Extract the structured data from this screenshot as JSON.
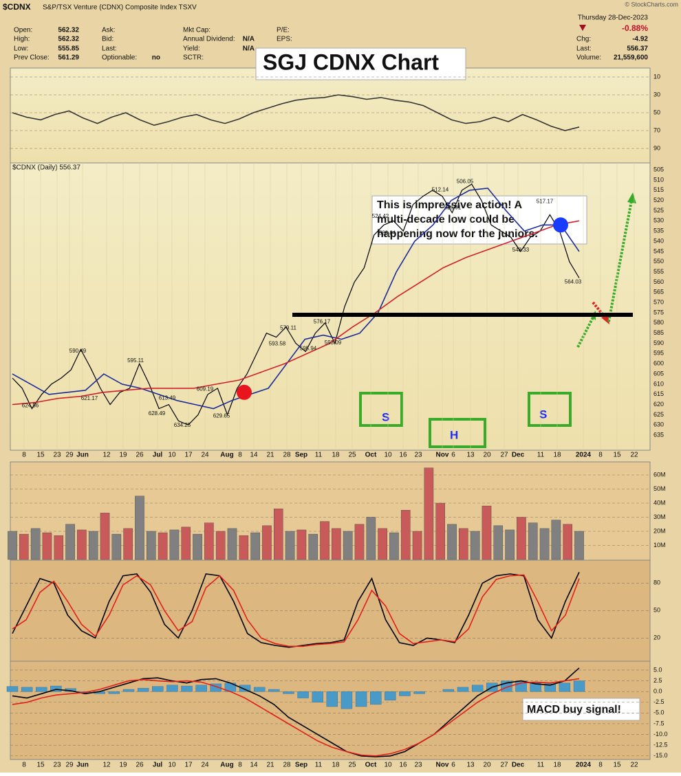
{
  "header": {
    "symbol": "$CDNX",
    "name": "S&P/TSX Venture (CDNX) Composite Index TSXV",
    "date": "Thursday  28-Dec-2023",
    "change_pct": "-0.88%",
    "source": "© StockCharts.com",
    "legend": "$CDNX (Daily) 556.37",
    "fields": [
      {
        "label": "Open:",
        "value": "562.32"
      },
      {
        "label": "High:",
        "value": "562.32"
      },
      {
        "label": "Low:",
        "value": "555.85"
      },
      {
        "label": "Prev Close:",
        "value": "561.29"
      },
      {
        "label": "Ask:"
      },
      {
        "label": "Bid:"
      },
      {
        "label": "Last:"
      },
      {
        "label": "Optionable:",
        "value": "no"
      },
      {
        "label": "Mkt Cap:"
      },
      {
        "label": "Annual Dividend:",
        "value": "N/A"
      },
      {
        "label": "Yield:",
        "value": "N/A"
      },
      {
        "label": "SCTR:"
      },
      {
        "label": "P/E:"
      },
      {
        "label": "EPS:"
      },
      {
        "label": "Chg:",
        "value": "-4.92"
      },
      {
        "label": "Last:",
        "value": "556.37"
      },
      {
        "label": "Volume:",
        "value": "21,559,600"
      }
    ]
  },
  "annotations": {
    "title": "SGJ CDNX Chart",
    "comment": [
      "This is impressive action!  A",
      "multi-decade low could be",
      "happening now for the juniors."
    ],
    "macd_note": "MACD buy signal!",
    "pattern": [
      "S",
      "H",
      "S"
    ]
  },
  "x_axis": {
    "labels": [
      8,
      15,
      23,
      29,
      "Jun",
      12,
      19,
      26,
      "Jul",
      10,
      17,
      24,
      "Aug",
      8,
      14,
      21,
      28,
      "Sep",
      11,
      18,
      25,
      "Oct",
      10,
      16,
      23,
      "Nov",
      6,
      13,
      20,
      27,
      "Dec",
      11,
      18,
      "2024",
      8,
      15,
      22
    ]
  },
  "chart_data": [
    {
      "type": "line",
      "name": "rsi",
      "ylim": [
        0,
        100
      ],
      "yticks": [
        10,
        30,
        50,
        70,
        90
      ],
      "grid": true,
      "series": [
        {
          "name": "RSI",
          "color": "#333333",
          "values": [
            50,
            55,
            58,
            52,
            48,
            56,
            62,
            55,
            50,
            58,
            64,
            60,
            55,
            52,
            58,
            62,
            57,
            50,
            45,
            40,
            36,
            34,
            33,
            30,
            32,
            35,
            33,
            36,
            38,
            42,
            50,
            58,
            62,
            60,
            55,
            60,
            52,
            58,
            65,
            70,
            66
          ]
        }
      ]
    },
    {
      "type": "line",
      "name": "price",
      "ylim": [
        502,
        640
      ],
      "yticks": [
        505,
        510,
        515,
        520,
        525,
        530,
        535,
        540,
        545,
        550,
        555,
        560,
        565,
        570,
        575,
        580,
        585,
        590,
        595,
        600,
        605,
        610,
        615,
        620,
        625,
        630,
        635
      ],
      "grid": false,
      "series": [
        {
          "name": "$CDNX",
          "color": "#000000",
          "values": [
            607,
            612,
            622,
            615,
            610,
            607,
            603,
            593,
            602,
            612,
            620,
            614,
            612,
            600,
            610,
            622,
            620,
            628,
            630,
            625,
            615,
            612,
            625,
            612,
            605,
            595,
            585,
            587,
            582,
            590,
            594,
            585,
            580,
            590,
            572,
            560,
            553,
            537,
            532,
            530,
            535,
            522,
            518,
            515,
            518,
            526,
            515,
            512,
            520,
            532,
            535,
            538,
            545,
            538,
            535,
            527,
            535,
            550,
            558
          ]
        },
        {
          "name": "MA20",
          "color": "#1a2a9a",
          "values": [
            605,
            610,
            615,
            614,
            613,
            605,
            610,
            612,
            615,
            618,
            620,
            622,
            618,
            615,
            612,
            600,
            588,
            586,
            588,
            585,
            575,
            555,
            540,
            532,
            520,
            515,
            514,
            525,
            535,
            532,
            532,
            545
          ]
        },
        {
          "name": "MA50",
          "color": "#d0202a",
          "values": [
            620,
            619,
            617,
            616,
            614,
            613,
            612,
            612,
            612,
            610,
            608,
            604,
            600,
            595,
            590,
            582,
            575,
            567,
            560,
            553,
            548,
            544,
            540,
            536,
            532,
            530
          ]
        }
      ],
      "level": 576,
      "markers": [
        {
          "value": 614,
          "color": "#e8141e"
        },
        {
          "value": 532,
          "color": "#1a3cff"
        }
      ],
      "price_labels": [
        624.56,
        621.17,
        628.49,
        634.25,
        629.65,
        590.49,
        595.11,
        613.49,
        609.19,
        593.58,
        595.94,
        593.09,
        579.11,
        576.17,
        538.84,
        524.42,
        526.91,
        512.14,
        506.05,
        548.33,
        564.03,
        517.17
      ]
    },
    {
      "type": "bar",
      "name": "volume",
      "ylim": [
        0,
        70
      ],
      "yticks": [
        {
          "value": 10,
          "label": "10M"
        },
        {
          "value": 20,
          "label": "20M"
        },
        {
          "value": 30,
          "label": "30M"
        },
        {
          "value": 40,
          "label": "40M"
        },
        {
          "value": 50,
          "label": "50M"
        },
        {
          "value": 60,
          "label": "60M"
        }
      ],
      "grid": true,
      "values": [
        20,
        18,
        22,
        19,
        17,
        25,
        21,
        20,
        33,
        18,
        22,
        45,
        20,
        19,
        21,
        23,
        18,
        26,
        20,
        22,
        17,
        19,
        24,
        36,
        20,
        21,
        18,
        27,
        22,
        20,
        25,
        30,
        22,
        19,
        35,
        20,
        65,
        40,
        25,
        22,
        20,
        38,
        24,
        21,
        30,
        26,
        22,
        28,
        25,
        20
      ],
      "colors": [
        "#808080",
        "#c85a5a",
        "#808080",
        "#c85a5a",
        "#c85a5a",
        "#808080",
        "#c85a5a",
        "#808080",
        "#c85a5a",
        "#808080",
        "#c85a5a",
        "#808080",
        "#808080",
        "#c85a5a",
        "#808080",
        "#c85a5a",
        "#808080",
        "#c85a5a",
        "#c85a5a",
        "#808080",
        "#c85a5a",
        "#808080",
        "#c85a5a",
        "#c85a5a",
        "#808080",
        "#c85a5a",
        "#808080",
        "#c85a5a",
        "#c85a5a",
        "#808080",
        "#c85a5a",
        "#808080",
        "#c85a5a",
        "#808080",
        "#c85a5a",
        "#c85a5a",
        "#c85a5a",
        "#c85a5a",
        "#808080",
        "#c85a5a",
        "#808080",
        "#c85a5a",
        "#808080",
        "#808080",
        "#c85a5a",
        "#808080",
        "#808080",
        "#808080",
        "#c85a5a",
        "#808080"
      ]
    },
    {
      "type": "line",
      "name": "stochastic",
      "ylim": [
        0,
        100
      ],
      "yticks": [
        20,
        50,
        80
      ],
      "grid": true,
      "series": [
        {
          "name": "%K",
          "color": "#000000",
          "values": [
            25,
            55,
            85,
            80,
            45,
            28,
            20,
            60,
            88,
            90,
            70,
            35,
            20,
            50,
            90,
            88,
            60,
            25,
            15,
            12,
            10,
            12,
            14,
            15,
            18,
            60,
            85,
            40,
            15,
            12,
            20,
            18,
            15,
            45,
            80,
            88,
            90,
            88,
            40,
            20,
            60,
            92
          ]
        },
        {
          "name": "%D",
          "color": "#e0201a",
          "values": [
            30,
            40,
            70,
            82,
            60,
            35,
            22,
            45,
            78,
            88,
            78,
            50,
            28,
            38,
            75,
            88,
            72,
            40,
            20,
            14,
            11,
            11,
            13,
            14,
            16,
            40,
            72,
            55,
            25,
            14,
            16,
            18,
            16,
            30,
            65,
            84,
            88,
            89,
            60,
            28,
            45,
            85
          ]
        }
      ]
    },
    {
      "type": "line",
      "name": "macd",
      "ylim": [
        -16,
        6.5
      ],
      "yticks": [
        {
          "value": 5,
          "label": "5.0"
        },
        2.5,
        {
          "value": 0,
          "label": "0.0"
        },
        -2.5,
        {
          "value": -5,
          "label": "-5.0"
        },
        -7.5,
        {
          "value": -10,
          "label": "-10.0"
        },
        -12.5,
        {
          "value": -15,
          "label": "-15.0"
        }
      ],
      "grid": true,
      "series": [
        {
          "name": "MACD",
          "color": "#000000",
          "values": [
            -1,
            -1.5,
            -0.5,
            0.5,
            0.2,
            -0.5,
            0,
            1,
            2,
            3,
            3.2,
            2.5,
            2,
            2.8,
            3,
            2,
            0.5,
            -1,
            -3,
            -6,
            -8,
            -10,
            -12,
            -14,
            -15,
            -15.2,
            -15,
            -14,
            -12,
            -10,
            -7,
            -4,
            -1,
            1,
            2,
            2.5,
            1.8,
            1.5,
            2.5,
            5.5
          ]
        },
        {
          "name": "Signal",
          "color": "#e0201a",
          "values": [
            -3,
            -2.5,
            -1.5,
            -0.8,
            -0.5,
            -0.2,
            0.5,
            1.5,
            2.5,
            2.8,
            2.5,
            2.3,
            2.5,
            2.2,
            1.2,
            0,
            -1.5,
            -3.5,
            -5.5,
            -7.5,
            -9.5,
            -11.5,
            -13,
            -14,
            -14.8,
            -15,
            -14.5,
            -13.5,
            -12,
            -10,
            -7.5,
            -5,
            -2.5,
            -0.5,
            1,
            2,
            2.2,
            2,
            2.5,
            3
          ]
        }
      ],
      "histogram": {
        "name": "Histogram",
        "color": "#4a9ac8",
        "values": [
          1.2,
          1,
          1,
          1.3,
          0.7,
          -0.3,
          -0.5,
          -0.5,
          0.5,
          0.8,
          1.2,
          1.5,
          1.3,
          1.5,
          1.8,
          2,
          1.5,
          1,
          0.5,
          -0.5,
          -1.5,
          -2.5,
          -3.5,
          -4,
          -3.5,
          -3,
          -2,
          -1,
          -0.5,
          0,
          0.5,
          1,
          1.5,
          2,
          2.5,
          2.5,
          2,
          1.8,
          2,
          2.5
        ]
      }
    }
  ]
}
